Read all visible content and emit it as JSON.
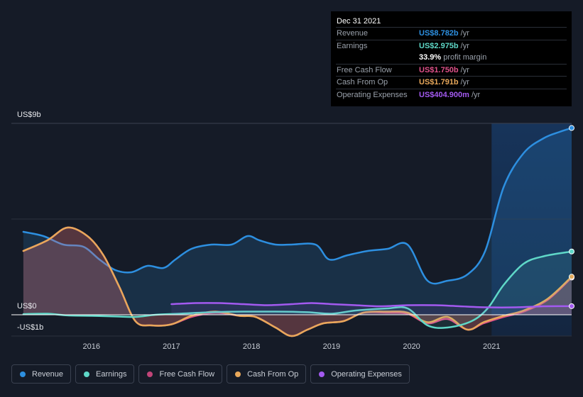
{
  "tooltip": {
    "date": "Dec 31 2021",
    "rows": [
      {
        "label": "Revenue",
        "value": "US$8.782b",
        "unit": "/yr",
        "color": "#2d8fe0"
      },
      {
        "label": "Earnings",
        "value": "US$2.975b",
        "unit": "/yr",
        "color": "#5fd8c8"
      },
      {
        "label": "",
        "value": "33.9%",
        "unit": "profit margin",
        "color": "#ffffff"
      },
      {
        "label": "Free Cash Flow",
        "value": "US$1.750b",
        "unit": "/yr",
        "color": "#e0518a"
      },
      {
        "label": "Cash From Op",
        "value": "US$1.791b",
        "unit": "/yr",
        "color": "#e8a85a"
      },
      {
        "label": "Operating Expenses",
        "value": "US$404.900m",
        "unit": "/yr",
        "color": "#a35af0"
      }
    ]
  },
  "axis": {
    "y_top": "US$9b",
    "y_zero": "US$0",
    "y_bottom": "-US$1b"
  },
  "legend": [
    {
      "label": "Revenue",
      "color": "#2d8fe0"
    },
    {
      "label": "Earnings",
      "color": "#5fd8c8"
    },
    {
      "label": "Free Cash Flow",
      "color": "#c04478"
    },
    {
      "label": "Cash From Op",
      "color": "#e8a85a"
    },
    {
      "label": "Operating Expenses",
      "color": "#a35af0"
    }
  ],
  "chart_data": {
    "type": "area",
    "x_ticks": [
      "2016",
      "2017",
      "2018",
      "2019",
      "2020",
      "2021"
    ],
    "ylim": [
      -1,
      9
    ],
    "y_unit": "US$b",
    "highlight_from": 2021.0,
    "series": [
      {
        "name": "Revenue",
        "color": "#2d8fe0",
        "points": [
          [
            2015.15,
            3.9
          ],
          [
            2015.4,
            3.7
          ],
          [
            2015.65,
            3.3
          ],
          [
            2015.9,
            3.2
          ],
          [
            2016.1,
            2.6
          ],
          [
            2016.3,
            2.1
          ],
          [
            2016.5,
            2.0
          ],
          [
            2016.7,
            2.3
          ],
          [
            2016.9,
            2.2
          ],
          [
            2017.05,
            2.6
          ],
          [
            2017.25,
            3.1
          ],
          [
            2017.5,
            3.3
          ],
          [
            2017.75,
            3.3
          ],
          [
            2017.95,
            3.7
          ],
          [
            2018.1,
            3.5
          ],
          [
            2018.3,
            3.3
          ],
          [
            2018.5,
            3.3
          ],
          [
            2018.8,
            3.3
          ],
          [
            2018.97,
            2.6
          ],
          [
            2019.2,
            2.8
          ],
          [
            2019.45,
            3.0
          ],
          [
            2019.7,
            3.1
          ],
          [
            2019.95,
            3.3
          ],
          [
            2020.2,
            1.6
          ],
          [
            2020.45,
            1.6
          ],
          [
            2020.7,
            1.9
          ],
          [
            2020.92,
            3.0
          ],
          [
            2021.15,
            6.0
          ],
          [
            2021.4,
            7.6
          ],
          [
            2021.65,
            8.3
          ],
          [
            2021.85,
            8.6
          ],
          [
            2022.0,
            8.782
          ]
        ]
      },
      {
        "name": "Earnings",
        "color": "#5fd8c8",
        "points": [
          [
            2015.15,
            0.03
          ],
          [
            2015.45,
            0.05
          ],
          [
            2015.7,
            -0.03
          ],
          [
            2016.0,
            -0.05
          ],
          [
            2016.3,
            -0.08
          ],
          [
            2016.55,
            -0.1
          ],
          [
            2016.8,
            0.0
          ],
          [
            2017.1,
            0.05
          ],
          [
            2017.5,
            0.12
          ],
          [
            2017.9,
            0.15
          ],
          [
            2018.3,
            0.15
          ],
          [
            2018.7,
            0.12
          ],
          [
            2019.0,
            0.05
          ],
          [
            2019.3,
            0.2
          ],
          [
            2019.7,
            0.3
          ],
          [
            2019.95,
            0.3
          ],
          [
            2020.2,
            -0.5
          ],
          [
            2020.45,
            -0.6
          ],
          [
            2020.75,
            -0.3
          ],
          [
            2020.95,
            0.3
          ],
          [
            2021.15,
            1.4
          ],
          [
            2021.4,
            2.4
          ],
          [
            2021.65,
            2.75
          ],
          [
            2022.0,
            2.975
          ]
        ]
      },
      {
        "name": "Free Cash Flow",
        "color": "#e0518a",
        "points": [
          [
            2015.15,
            3.0
          ],
          [
            2015.45,
            3.5
          ],
          [
            2015.7,
            4.1
          ],
          [
            2015.95,
            3.7
          ],
          [
            2016.15,
            2.8
          ],
          [
            2016.35,
            1.3
          ],
          [
            2016.55,
            -0.3
          ],
          [
            2016.75,
            -0.5
          ],
          [
            2017.0,
            -0.45
          ],
          [
            2017.25,
            -0.1
          ],
          [
            2017.55,
            0.1
          ],
          [
            2017.85,
            -0.05
          ],
          [
            2018.05,
            -0.1
          ],
          [
            2018.3,
            -0.6
          ],
          [
            2018.5,
            -1.0
          ],
          [
            2018.7,
            -0.7
          ],
          [
            2018.9,
            -0.4
          ],
          [
            2019.15,
            -0.3
          ],
          [
            2019.4,
            0.1
          ],
          [
            2019.7,
            0.1
          ],
          [
            2019.95,
            0.05
          ],
          [
            2020.2,
            -0.4
          ],
          [
            2020.45,
            -0.2
          ],
          [
            2020.7,
            -0.7
          ],
          [
            2020.9,
            -0.4
          ],
          [
            2021.15,
            -0.1
          ],
          [
            2021.4,
            0.15
          ],
          [
            2021.7,
            0.7
          ],
          [
            2022.0,
            1.75
          ]
        ]
      },
      {
        "name": "Cash From Op",
        "color": "#e8a85a",
        "points": [
          [
            2015.15,
            3.0
          ],
          [
            2015.45,
            3.5
          ],
          [
            2015.7,
            4.1
          ],
          [
            2015.95,
            3.7
          ],
          [
            2016.15,
            2.8
          ],
          [
            2016.35,
            1.3
          ],
          [
            2016.55,
            -0.3
          ],
          [
            2016.75,
            -0.5
          ],
          [
            2017.0,
            -0.45
          ],
          [
            2017.25,
            -0.05
          ],
          [
            2017.55,
            0.15
          ],
          [
            2017.85,
            -0.05
          ],
          [
            2018.05,
            -0.1
          ],
          [
            2018.3,
            -0.6
          ],
          [
            2018.5,
            -1.0
          ],
          [
            2018.7,
            -0.7
          ],
          [
            2018.9,
            -0.4
          ],
          [
            2019.15,
            -0.3
          ],
          [
            2019.4,
            0.1
          ],
          [
            2019.7,
            0.15
          ],
          [
            2019.95,
            0.1
          ],
          [
            2020.2,
            -0.35
          ],
          [
            2020.45,
            -0.1
          ],
          [
            2020.7,
            -0.7
          ],
          [
            2020.9,
            -0.35
          ],
          [
            2021.15,
            -0.05
          ],
          [
            2021.4,
            0.2
          ],
          [
            2021.7,
            0.75
          ],
          [
            2022.0,
            1.791
          ]
        ]
      },
      {
        "name": "Operating Expenses",
        "color": "#a35af0",
        "points": [
          [
            2017.0,
            0.5
          ],
          [
            2017.3,
            0.55
          ],
          [
            2017.6,
            0.55
          ],
          [
            2017.9,
            0.5
          ],
          [
            2018.2,
            0.45
          ],
          [
            2018.5,
            0.5
          ],
          [
            2018.75,
            0.55
          ],
          [
            2019.0,
            0.5
          ],
          [
            2019.3,
            0.45
          ],
          [
            2019.6,
            0.4
          ],
          [
            2019.95,
            0.45
          ],
          [
            2020.3,
            0.45
          ],
          [
            2020.6,
            0.4
          ],
          [
            2020.95,
            0.35
          ],
          [
            2021.3,
            0.35
          ],
          [
            2021.65,
            0.4
          ],
          [
            2022.0,
            0.405
          ]
        ]
      }
    ]
  }
}
